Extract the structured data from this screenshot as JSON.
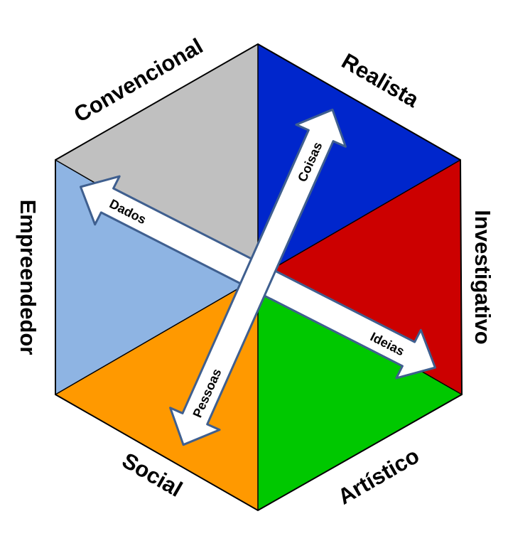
{
  "diagram": {
    "segments": [
      {
        "id": "realista",
        "label": "Realista",
        "color": "#0026CC"
      },
      {
        "id": "investigativo",
        "label": "Investigativo",
        "color": "#CC0000"
      },
      {
        "id": "artistico",
        "label": "Artístico",
        "color": "#00C800"
      },
      {
        "id": "social",
        "label": "Social",
        "color": "#FF9900"
      },
      {
        "id": "empreendedor",
        "label": "Empreendedor",
        "color": "#8EB4E3"
      },
      {
        "id": "convencional",
        "label": "Convencional",
        "color": "#C0C0C0"
      }
    ],
    "arrows": {
      "coisas": "Coisas",
      "pessoas": "Pessoas",
      "dados": "Dados",
      "ideias": "Ideias"
    },
    "arrow_fill": "#FFFFFF",
    "arrow_stroke": "#3F5F8F"
  }
}
